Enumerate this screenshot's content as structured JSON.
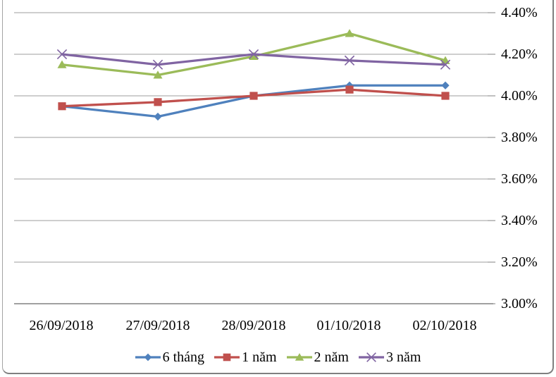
{
  "chart_data": {
    "type": "line",
    "title": "",
    "categories": [
      "26/09/2018",
      "27/09/2018",
      "28/09/2018",
      "01/10/2018",
      "02/10/2018"
    ],
    "series": [
      {
        "name": "6 tháng",
        "color": "#4F81BD",
        "marker": "diamond",
        "values": [
          3.95,
          3.9,
          4.0,
          4.05,
          4.05
        ]
      },
      {
        "name": "1 năm",
        "color": "#C0504D",
        "marker": "square",
        "values": [
          3.95,
          3.97,
          4.0,
          4.03,
          4.0
        ]
      },
      {
        "name": "2 năm",
        "color": "#9BBB59",
        "marker": "triangle",
        "values": [
          4.15,
          4.1,
          4.19,
          4.3,
          4.17
        ]
      },
      {
        "name": "3 năm",
        "color": "#8064A2",
        "marker": "x",
        "values": [
          4.2,
          4.15,
          4.2,
          4.17,
          4.15
        ]
      }
    ],
    "ylim": [
      3.0,
      4.4
    ],
    "ytick_step": 0.2,
    "ytick_labels": [
      "4.40%",
      "4.20%",
      "4.00%",
      "3.80%",
      "3.60%",
      "3.40%",
      "3.20%",
      "3.00%"
    ],
    "yaxis_side": "right",
    "xlabel": "",
    "ylabel": "",
    "grid": true,
    "legend_position": "bottom",
    "gridline_color": "#9d9d9d",
    "axis_line_color": "#808080"
  }
}
